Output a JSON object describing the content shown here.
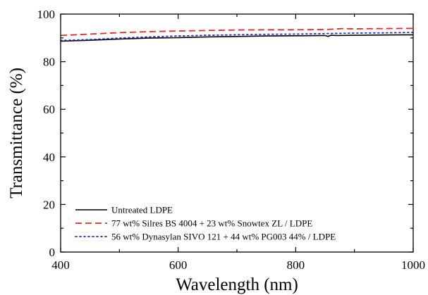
{
  "chart_data": {
    "type": "line",
    "title": "",
    "xlabel": "Wavelength (nm)",
    "ylabel": "Transmittance (%)",
    "xlim": [
      400,
      1000
    ],
    "ylim": [
      0,
      100
    ],
    "xticks": [
      400,
      600,
      800,
      1000
    ],
    "yticks": [
      0,
      20,
      40,
      60,
      80,
      100
    ],
    "xtick_labels": [
      "400",
      "600",
      "800",
      "1000"
    ],
    "ytick_labels": [
      "0",
      "20",
      "40",
      "60",
      "80",
      "100"
    ],
    "grid": false,
    "legend_position": "bottom-left",
    "series": [
      {
        "name": "Untreated LDPE",
        "color": "#000000",
        "style": "solid",
        "x": [
          400,
          450,
          500,
          550,
          600,
          650,
          700,
          750,
          800,
          850,
          855,
          860,
          870,
          900,
          950,
          1000
        ],
        "y": [
          88.6,
          89.0,
          89.5,
          89.9,
          90.1,
          90.4,
          90.6,
          90.8,
          90.9,
          91.0,
          90.6,
          91.1,
          91.0,
          91.1,
          91.2,
          91.3
        ]
      },
      {
        "name": "77 wt% Silres BS 4004 + 23 wt% Snowtex ZL / LDPE",
        "color": "#e8282a",
        "style": "dashed",
        "x": [
          400,
          450,
          500,
          550,
          600,
          650,
          700,
          750,
          800,
          850,
          880,
          900,
          950,
          1000
        ],
        "y": [
          91.0,
          91.6,
          92.2,
          92.6,
          92.9,
          93.1,
          93.3,
          93.4,
          93.4,
          93.5,
          93.9,
          93.8,
          93.9,
          94.0
        ]
      },
      {
        "name": "56 wt% Dynasylan SIVO 121 + 44 wt% PG003 44% / LDPE",
        "color": "#2a2adf",
        "style": "dotted",
        "x": [
          400,
          450,
          500,
          550,
          600,
          650,
          700,
          750,
          800,
          850,
          900,
          950,
          1000
        ],
        "y": [
          88.9,
          89.3,
          89.9,
          90.4,
          90.8,
          91.1,
          91.3,
          91.5,
          91.6,
          91.8,
          92.0,
          92.1,
          92.3
        ]
      }
    ]
  }
}
